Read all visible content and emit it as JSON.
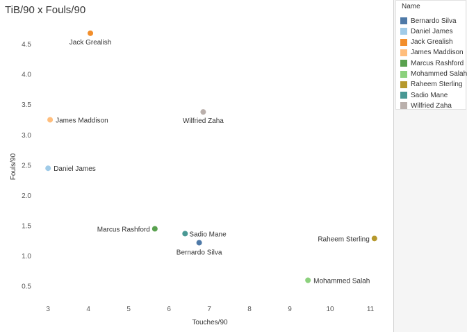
{
  "title": "TiB/90 x Fouls/90",
  "legend": {
    "title": "Name"
  },
  "chart_data": {
    "type": "scatter",
    "title": "TiB/90 x Fouls/90",
    "xlabel": "Touches/90",
    "ylabel": "Fouls/90",
    "xlim": [
      2.6,
      11.5
    ],
    "ylim": [
      0.25,
      4.85
    ],
    "xticks": [
      "3",
      "4",
      "5",
      "6",
      "7",
      "8",
      "9",
      "10",
      "11"
    ],
    "yticks": [
      "0.5",
      "1.0",
      "1.5",
      "2.0",
      "2.5",
      "3.0",
      "3.5",
      "4.0",
      "4.5"
    ],
    "legend_position": "right",
    "grid": false,
    "points": [
      {
        "name": "Bernardo Silva",
        "x": 6.75,
        "y": 1.22,
        "color": "#4e79a7"
      },
      {
        "name": "Daniel James",
        "x": 3.0,
        "y": 2.45,
        "color": "#a0cbe8"
      },
      {
        "name": "Jack Grealish",
        "x": 4.05,
        "y": 4.68,
        "color": "#f28e2b"
      },
      {
        "name": "James Maddison",
        "x": 3.05,
        "y": 3.25,
        "color": "#ffbe7d"
      },
      {
        "name": "Marcus Rashford",
        "x": 5.65,
        "y": 1.45,
        "color": "#59a14f"
      },
      {
        "name": "Mohammed Salah",
        "x": 9.45,
        "y": 0.6,
        "color": "#8cd17d"
      },
      {
        "name": "Raheem Sterling",
        "x": 11.1,
        "y": 1.29,
        "color": "#b6992d"
      },
      {
        "name": "Sadio Mane",
        "x": 6.4,
        "y": 1.37,
        "color": "#499894"
      },
      {
        "name": "Wilfried Zaha",
        "x": 6.85,
        "y": 3.38,
        "color": "#bab0ac"
      }
    ]
  }
}
